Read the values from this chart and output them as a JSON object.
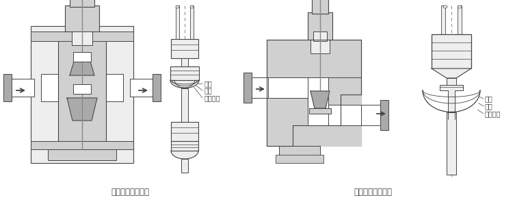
{
  "title_left": "双座调节阀结构图",
  "title_right": "单座调节阀结构图",
  "labels_left": [
    "快开",
    "线性",
    "等百分比"
  ],
  "labels_right": [
    "快开",
    "线性",
    "等百分比"
  ],
  "bg_color": "#ffffff",
  "line_color": "#444444",
  "dark_gray": "#888888",
  "mid_gray": "#aaaaaa",
  "light_gray": "#d0d0d0",
  "very_light_gray": "#eeeeee",
  "title_fontsize": 8.5,
  "label_fontsize": 7,
  "fig_width": 7.53,
  "fig_height": 2.92,
  "dpi": 100
}
